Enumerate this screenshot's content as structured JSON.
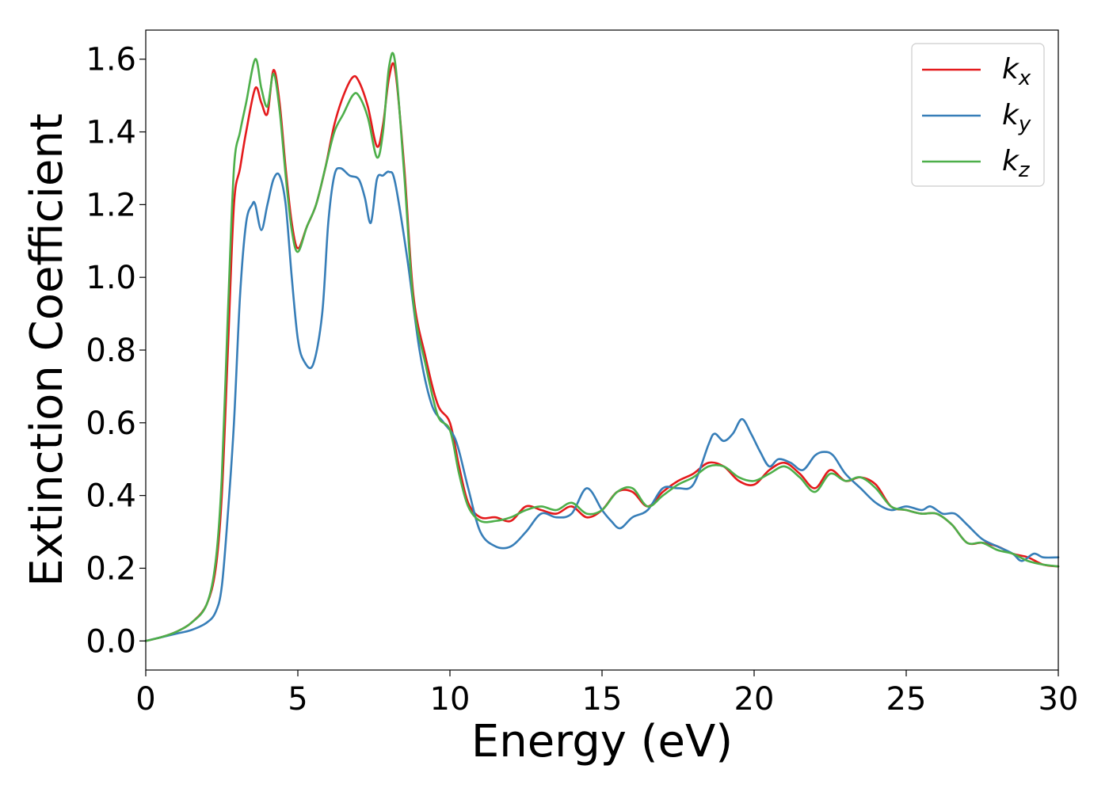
{
  "chart_data": {
    "type": "line",
    "xlabel": "Energy (eV)",
    "ylabel": "Extinction Coefficient",
    "xlim": [
      0,
      30
    ],
    "ylim": [
      -0.08,
      1.68
    ],
    "xticks": [
      0,
      5,
      10,
      15,
      20,
      25,
      30
    ],
    "xtick_labels": [
      "0",
      "5",
      "10",
      "15",
      "20",
      "25",
      "30"
    ],
    "yticks": [
      0.0,
      0.2,
      0.4,
      0.6,
      0.8,
      1.0,
      1.2,
      1.4,
      1.6
    ],
    "ytick_labels": [
      "0.0",
      "0.2",
      "0.4",
      "0.6",
      "0.8",
      "1.0",
      "1.2",
      "1.4",
      "1.6"
    ],
    "grid": false,
    "legend_position": "top-right",
    "series": [
      {
        "name": "k",
        "subscript": "x",
        "color": "#e41a1c",
        "x": [
          0,
          0.5,
          1,
          1.5,
          2,
          2.3,
          2.5,
          2.7,
          2.9,
          3.1,
          3.3,
          3.6,
          3.8,
          4.0,
          4.2,
          4.4,
          4.6,
          4.8,
          5.0,
          5.3,
          5.6,
          5.9,
          6.2,
          6.5,
          6.8,
          7.0,
          7.3,
          7.6,
          7.8,
          8.0,
          8.2,
          8.5,
          8.8,
          9.2,
          9.6,
          10.0,
          10.3,
          10.6,
          11.0,
          11.5,
          12.0,
          12.5,
          13.0,
          13.5,
          14.0,
          14.5,
          15.0,
          15.5,
          16.0,
          16.5,
          17.0,
          17.5,
          18.0,
          18.5,
          19.0,
          19.5,
          20.0,
          20.5,
          21.0,
          21.5,
          22.0,
          22.5,
          23.0,
          23.5,
          24.0,
          24.5,
          25.0,
          25.5,
          26.0,
          26.5,
          27.0,
          27.5,
          28.0,
          28.5,
          29.0,
          29.5,
          30.0
        ],
        "y": [
          0.0,
          0.01,
          0.025,
          0.05,
          0.1,
          0.2,
          0.4,
          0.8,
          1.2,
          1.3,
          1.4,
          1.52,
          1.48,
          1.45,
          1.57,
          1.48,
          1.3,
          1.15,
          1.08,
          1.14,
          1.2,
          1.3,
          1.42,
          1.5,
          1.55,
          1.54,
          1.47,
          1.36,
          1.42,
          1.55,
          1.57,
          1.3,
          0.95,
          0.78,
          0.65,
          0.6,
          0.48,
          0.38,
          0.34,
          0.34,
          0.33,
          0.37,
          0.36,
          0.35,
          0.37,
          0.34,
          0.36,
          0.41,
          0.41,
          0.37,
          0.41,
          0.44,
          0.46,
          0.49,
          0.48,
          0.44,
          0.43,
          0.47,
          0.49,
          0.46,
          0.42,
          0.47,
          0.44,
          0.45,
          0.43,
          0.37,
          0.36,
          0.35,
          0.35,
          0.32,
          0.27,
          0.27,
          0.26,
          0.24,
          0.23,
          0.21,
          0.205
        ]
      },
      {
        "name": "k",
        "subscript": "y",
        "color": "#377eb8",
        "x": [
          0,
          0.5,
          1,
          1.5,
          2,
          2.3,
          2.5,
          2.7,
          2.9,
          3.1,
          3.3,
          3.5,
          3.6,
          3.8,
          4.0,
          4.2,
          4.4,
          4.6,
          4.8,
          5.0,
          5.2,
          5.5,
          5.8,
          6.0,
          6.2,
          6.4,
          6.7,
          7.0,
          7.2,
          7.4,
          7.6,
          7.8,
          8.0,
          8.2,
          8.6,
          9.0,
          9.4,
          9.8,
          10.2,
          10.6,
          11.0,
          11.5,
          12.0,
          12.5,
          13.0,
          13.5,
          14.0,
          14.5,
          15.0,
          15.3,
          15.6,
          16.0,
          16.5,
          17.0,
          17.5,
          18.0,
          18.5,
          18.7,
          19.0,
          19.3,
          19.6,
          19.9,
          20.2,
          20.5,
          20.8,
          21.2,
          21.6,
          22.0,
          22.3,
          22.6,
          23.0,
          23.5,
          24.0,
          24.5,
          25.0,
          25.5,
          25.8,
          26.2,
          26.6,
          27.0,
          27.5,
          28.0,
          28.5,
          28.8,
          29.2,
          29.5,
          30.0
        ],
        "y": [
          0.0,
          0.01,
          0.02,
          0.03,
          0.05,
          0.08,
          0.15,
          0.35,
          0.6,
          0.95,
          1.15,
          1.2,
          1.2,
          1.13,
          1.2,
          1.27,
          1.28,
          1.2,
          1.0,
          0.83,
          0.77,
          0.76,
          0.9,
          1.15,
          1.28,
          1.3,
          1.28,
          1.27,
          1.22,
          1.15,
          1.27,
          1.28,
          1.29,
          1.26,
          1.05,
          0.8,
          0.65,
          0.6,
          0.55,
          0.42,
          0.3,
          0.26,
          0.26,
          0.3,
          0.35,
          0.34,
          0.35,
          0.42,
          0.36,
          0.33,
          0.31,
          0.34,
          0.36,
          0.42,
          0.42,
          0.43,
          0.54,
          0.57,
          0.55,
          0.57,
          0.61,
          0.57,
          0.52,
          0.48,
          0.5,
          0.49,
          0.47,
          0.51,
          0.52,
          0.51,
          0.46,
          0.42,
          0.38,
          0.36,
          0.37,
          0.36,
          0.37,
          0.35,
          0.35,
          0.32,
          0.28,
          0.26,
          0.24,
          0.22,
          0.24,
          0.23,
          0.23
        ]
      },
      {
        "name": "k",
        "subscript": "z",
        "color": "#4daf4a",
        "x": [
          0,
          0.5,
          1,
          1.5,
          2,
          2.3,
          2.5,
          2.7,
          2.9,
          3.1,
          3.3,
          3.6,
          3.8,
          4.0,
          4.2,
          4.4,
          4.6,
          4.8,
          5.0,
          5.3,
          5.6,
          5.9,
          6.2,
          6.5,
          6.8,
          7.0,
          7.3,
          7.6,
          7.8,
          8.0,
          8.2,
          8.5,
          8.8,
          9.2,
          9.6,
          10.0,
          10.3,
          10.6,
          11.0,
          11.5,
          12.0,
          12.5,
          13.0,
          13.5,
          14.0,
          14.5,
          15.0,
          15.5,
          16.0,
          16.5,
          17.0,
          17.5,
          18.0,
          18.5,
          19.0,
          19.5,
          20.0,
          20.5,
          21.0,
          21.5,
          22.0,
          22.5,
          23.0,
          23.5,
          24.0,
          24.5,
          25.0,
          25.5,
          26.0,
          26.5,
          27.0,
          27.5,
          28.0,
          28.5,
          29.0,
          29.5,
          30.0
        ],
        "y": [
          0.0,
          0.01,
          0.025,
          0.05,
          0.1,
          0.22,
          0.45,
          0.9,
          1.3,
          1.4,
          1.48,
          1.6,
          1.52,
          1.47,
          1.56,
          1.46,
          1.28,
          1.13,
          1.07,
          1.14,
          1.2,
          1.3,
          1.4,
          1.45,
          1.5,
          1.5,
          1.44,
          1.33,
          1.4,
          1.58,
          1.59,
          1.28,
          0.93,
          0.76,
          0.62,
          0.58,
          0.46,
          0.37,
          0.33,
          0.33,
          0.34,
          0.36,
          0.37,
          0.36,
          0.38,
          0.35,
          0.36,
          0.41,
          0.42,
          0.37,
          0.4,
          0.43,
          0.45,
          0.48,
          0.48,
          0.45,
          0.44,
          0.46,
          0.48,
          0.45,
          0.41,
          0.46,
          0.44,
          0.45,
          0.42,
          0.37,
          0.36,
          0.35,
          0.35,
          0.32,
          0.27,
          0.27,
          0.25,
          0.24,
          0.22,
          0.21,
          0.205
        ]
      }
    ]
  }
}
